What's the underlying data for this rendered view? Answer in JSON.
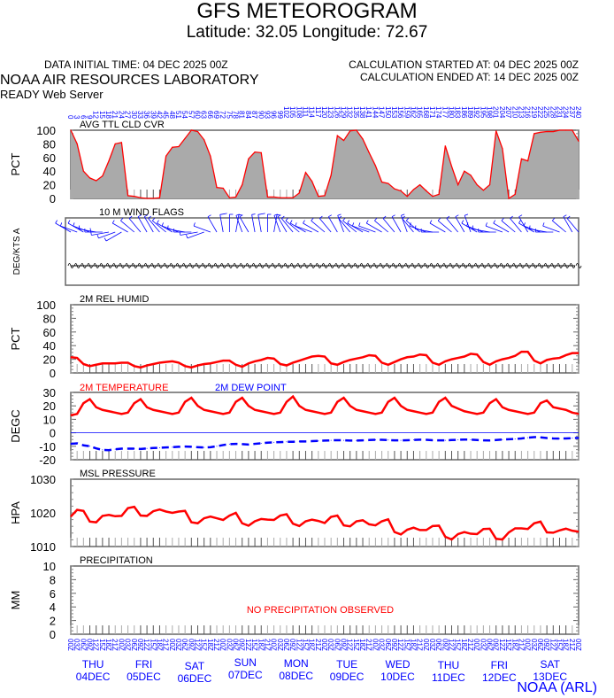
{
  "header": {
    "title": "GFS METEOROGRAM",
    "location": "Latitude: 32.05 Longitude:  72.67",
    "initial_time": "DATA INITIAL TIME: 04 DEC 2025 00Z",
    "calc_started": "CALCULATION STARTED AT: 04 DEC 2025 00Z",
    "calc_ended": "CALCULATION ENDED AT: 14 DEC 2025 00Z",
    "org": "NOAA AIR RESOURCES LABORATORY",
    "server": "READY Web Server",
    "credit": "NOAA (ARL)"
  },
  "colors": {
    "line": "#ff0000",
    "fill": "#aaaaaa",
    "blue": "#0000ff",
    "axis": "#666666"
  },
  "chart_data": [
    {
      "type": "area",
      "title": "AVG TTL CLD CVR",
      "ylabel": "PCT",
      "ylim": [
        0,
        100
      ],
      "yticks": [
        "0",
        "20",
        "40",
        "60",
        "80",
        "100"
      ],
      "x_hours_step": 3,
      "values": [
        100,
        80,
        40,
        30,
        26,
        33,
        55,
        80,
        82,
        4,
        3,
        1,
        0,
        0,
        1,
        62,
        75,
        76,
        88,
        100,
        98,
        86,
        62,
        16,
        15,
        1,
        2,
        20,
        58,
        68,
        67,
        2,
        2,
        1,
        1,
        1,
        8,
        38,
        25,
        3,
        4,
        34,
        92,
        85,
        99,
        100,
        87,
        67,
        48,
        24,
        22,
        14,
        11,
        3,
        13,
        20,
        11,
        3,
        6,
        77,
        47,
        20,
        40,
        34,
        20,
        12,
        20,
        99,
        73,
        0,
        6,
        58,
        55,
        95,
        97,
        98,
        98,
        100,
        100,
        100,
        84
      ]
    },
    {
      "type": "wind_barbs",
      "title": "10 M  WIND FLAGS",
      "ylabel": "DEG/KTS  A",
      "direction_deg": [
        300,
        290,
        300,
        290,
        280,
        270,
        260,
        250,
        240,
        300,
        310,
        320,
        330,
        330,
        320,
        310,
        300,
        290,
        280,
        270,
        260,
        250,
        290,
        330,
        350,
        0,
        10,
        340,
        330,
        350,
        350,
        0,
        10,
        340,
        330,
        320,
        310,
        300,
        290,
        300,
        310,
        320,
        330,
        340,
        320,
        310,
        300,
        290,
        290,
        300,
        310,
        320,
        330,
        340,
        320,
        310,
        290,
        280,
        270,
        300,
        310,
        320,
        330,
        340,
        300,
        290,
        280,
        270,
        290,
        300,
        310,
        320,
        330,
        300,
        290,
        280,
        270,
        290,
        310,
        330,
        320
      ],
      "speed_kts": [
        8,
        7,
        6,
        7,
        8,
        9,
        10,
        9,
        8,
        6,
        5,
        5,
        6,
        7,
        8,
        9,
        8,
        7,
        6,
        5,
        6,
        7,
        8,
        9,
        10,
        9,
        8,
        7,
        8,
        9,
        10,
        9,
        8,
        7,
        6,
        7,
        8,
        9,
        8,
        7,
        6,
        7,
        8,
        9,
        8,
        7,
        6,
        7,
        8,
        9,
        8,
        7,
        6,
        5,
        6,
        7,
        8,
        9,
        8,
        7,
        6,
        7,
        8,
        7,
        6,
        7,
        8,
        9,
        8,
        7,
        6,
        7,
        8,
        9,
        8,
        7,
        6,
        7,
        8,
        7,
        6
      ]
    },
    {
      "type": "line",
      "title": "2M REL HUMID",
      "ylabel": "PCT",
      "ylim": [
        0,
        100
      ],
      "yticks": [
        "0",
        "20",
        "40",
        "60",
        "80",
        "100"
      ],
      "values": [
        23,
        22,
        13,
        10,
        12,
        14,
        14,
        14,
        15,
        15,
        10,
        8,
        11,
        13,
        15,
        16,
        17,
        15,
        10,
        8,
        11,
        13,
        14,
        16,
        18,
        18,
        12,
        9,
        14,
        17,
        19,
        22,
        21,
        13,
        11,
        15,
        18,
        21,
        24,
        25,
        24,
        14,
        12,
        16,
        19,
        21,
        23,
        26,
        25,
        15,
        12,
        16,
        20,
        23,
        24,
        27,
        26,
        15,
        12,
        17,
        20,
        22,
        24,
        28,
        27,
        16,
        12,
        17,
        20,
        22,
        25,
        31,
        31,
        18,
        14,
        19,
        21,
        22,
        26,
        29,
        29
      ]
    },
    {
      "type": "line",
      "title_temp": "2M TEMPERATURE",
      "title_dew": "2M   DEW POINT",
      "ylabel": "DEGC",
      "ylim": [
        -20,
        30
      ],
      "yticks": [
        "-20",
        "-10",
        "0",
        "10",
        "20",
        "30"
      ],
      "series": [
        {
          "name": "2M TEMPERATURE",
          "values": [
            13,
            14,
            22,
            25,
            19,
            17,
            16,
            15,
            14,
            15,
            22,
            25,
            19,
            17,
            16,
            15,
            14,
            15,
            23,
            26,
            20,
            17,
            16,
            15,
            14,
            15,
            23,
            26,
            20,
            17,
            16,
            15,
            14,
            15,
            23,
            27,
            20,
            17,
            16,
            15,
            14,
            15,
            23,
            26,
            20,
            17,
            16,
            15,
            14,
            15,
            23,
            26,
            20,
            17,
            16,
            15,
            14,
            15,
            23,
            26,
            20,
            18,
            16,
            15,
            14,
            15,
            22,
            25,
            19,
            17,
            16,
            15,
            14,
            15,
            22,
            24,
            19,
            18,
            17,
            15,
            14
          ]
        },
        {
          "name": "2M   DEW POINT",
          "values": [
            -8.2,
            -7.8,
            -9.3,
            -10,
            -11.6,
            -12.7,
            -12.9,
            -12.2,
            -11.8,
            -11.8,
            -11.8,
            -12,
            -11.6,
            -11.3,
            -11.1,
            -10.9,
            -10.7,
            -10.4,
            -10.2,
            -10.4,
            -10.7,
            -10.9,
            -10.7,
            -10,
            -9.1,
            -8.4,
            -8.2,
            -8.4,
            -8.7,
            -8.2,
            -7.8,
            -7.3,
            -7.1,
            -6.9,
            -6.7,
            -6.7,
            -6.4,
            -6.4,
            -6.2,
            -6,
            -5.8,
            -5.6,
            -5.5,
            -5.6,
            -5.8,
            -5.8,
            -5.6,
            -5.4,
            -5.2,
            -5.2,
            -5.4,
            -5.6,
            -5.6,
            -5.5,
            -5.3,
            -5.1,
            -5.2,
            -5.5,
            -5.6,
            -5.6,
            -5.4,
            -5.2,
            -5,
            -5.1,
            -5.4,
            -5.6,
            -5.7,
            -5.4,
            -5,
            -4.8,
            -4.6,
            -4.2,
            -3.6,
            -3.2,
            -3.4,
            -3.9,
            -4.2,
            -4.3,
            -4.2,
            -4,
            -3.8
          ]
        }
      ]
    },
    {
      "type": "line",
      "title": "MSL PRESSURE",
      "ylabel": "HPA",
      "ylim": [
        1010,
        1030
      ],
      "yticks": [
        "1010",
        "1020",
        "1030"
      ],
      "values": [
        1018.9,
        1020.9,
        1020.6,
        1017.4,
        1017.2,
        1019.1,
        1019.4,
        1019,
        1019.1,
        1021.4,
        1021.8,
        1019.2,
        1019.1,
        1020.5,
        1021,
        1020.4,
        1020,
        1020.4,
        1020.6,
        1017.2,
        1016.9,
        1018.4,
        1018.9,
        1018.4,
        1017.9,
        1019.2,
        1020,
        1016.9,
        1016.2,
        1017.5,
        1018.2,
        1018,
        1017.9,
        1019.2,
        1019.6,
        1016.8,
        1016.1,
        1017.5,
        1018,
        1017.6,
        1017,
        1018.8,
        1019.2,
        1016.3,
        1016,
        1017.5,
        1017.8,
        1016.6,
        1016.3,
        1017.5,
        1018.1,
        1014.3,
        1013.6,
        1015,
        1015.6,
        1014.9,
        1014.9,
        1016.1,
        1016.2,
        1012.9,
        1012.1,
        1013.7,
        1014.3,
        1013.8,
        1013.7,
        1015.2,
        1015.3,
        1012.3,
        1012.1,
        1014.2,
        1015.4,
        1015.4,
        1015.2,
        1016.9,
        1017.4,
        1014.2,
        1014.1,
        1014.8,
        1015.3,
        1014.7,
        1014.4
      ]
    },
    {
      "type": "bar",
      "title": "PRECIPITATION",
      "ylabel": "MM",
      "ylim": [
        0,
        10
      ],
      "yticks": [
        "0",
        "2",
        "4",
        "6",
        "8",
        "10"
      ],
      "note": "NO PRECIPITATION OBSERVED",
      "values": []
    }
  ],
  "x_axis": {
    "forecast_hours": [
      "0",
      "3",
      "6",
      "9",
      "12",
      "15",
      "18",
      "21",
      "24",
      "27",
      "30",
      "33",
      "36",
      "39",
      "42",
      "45",
      "48",
      "51",
      "54",
      "57",
      "60",
      "63",
      "66",
      "69",
      "72",
      "75",
      "78",
      "81",
      "84",
      "87",
      "90",
      "93",
      "96",
      "99",
      "102",
      "105",
      "108",
      "111",
      "114",
      "117",
      "120",
      "123",
      "126",
      "129",
      "132",
      "135",
      "138",
      "141",
      "144",
      "147",
      "150",
      "153",
      "156",
      "159",
      "162",
      "165",
      "168",
      "171",
      "174",
      "177",
      "180",
      "183",
      "186",
      "189",
      "192",
      "195",
      "198",
      "201",
      "204",
      "207",
      "210",
      "213",
      "216",
      "219",
      "222",
      "225",
      "228",
      "231",
      "234",
      "237",
      "240"
    ],
    "utc_hours": [
      "00Z",
      "03Z",
      "06Z",
      "09Z",
      "12Z",
      "15Z",
      "18Z",
      "21Z"
    ],
    "days": [
      {
        "dow": "THU",
        "date": "04DEC"
      },
      {
        "dow": "FRI",
        "date": "05DEC"
      },
      {
        "dow": "SAT",
        "date": "06DEC"
      },
      {
        "dow": "SUN",
        "date": "07DEC"
      },
      {
        "dow": "MON",
        "date": "08DEC"
      },
      {
        "dow": "TUE",
        "date": "09DEC"
      },
      {
        "dow": "WED",
        "date": "10DEC"
      },
      {
        "dow": "THU",
        "date": "11DEC"
      },
      {
        "dow": "FRI",
        "date": "12DEC"
      },
      {
        "dow": "SAT",
        "date": "13DEC"
      }
    ]
  }
}
